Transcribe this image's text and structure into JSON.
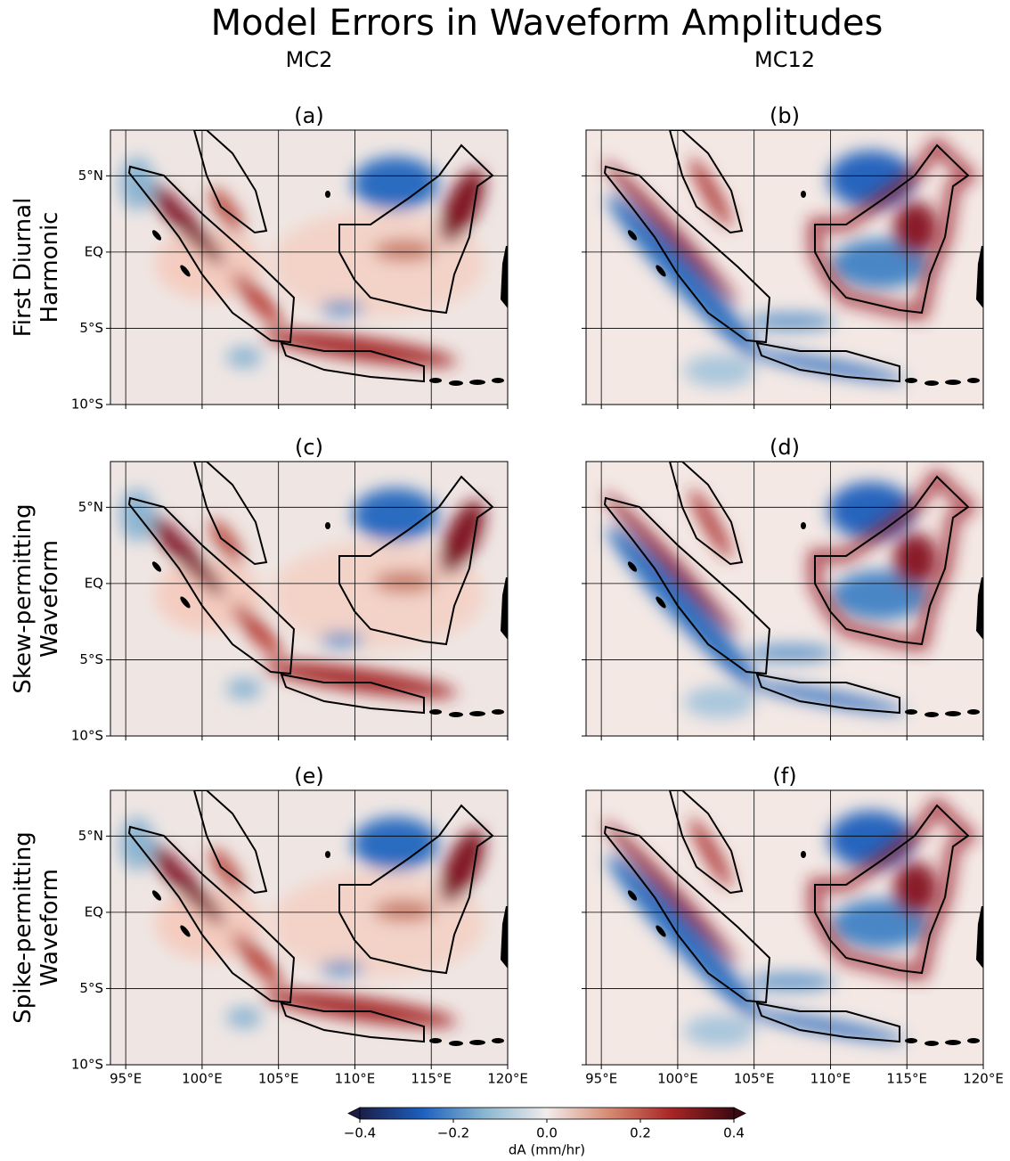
{
  "title": "Model Errors in Waveform Amplitudes",
  "columns": [
    "MC2",
    "MC12"
  ],
  "rows": [
    [
      "First Diurnal",
      "Harmonic"
    ],
    [
      "Skew-permitting",
      "Waveform"
    ],
    [
      "Spike-permitting",
      "Waveform"
    ]
  ],
  "panels": [
    "(a)",
    "(b)",
    "(c)",
    "(d)",
    "(e)",
    "(f)"
  ],
  "map": {
    "lonlim": [
      94,
      120
    ],
    "latlim": [
      -10,
      8
    ],
    "lon_ticks": [
      {
        "value": 95,
        "label": "95°E"
      },
      {
        "value": 100,
        "label": "100°E"
      },
      {
        "value": 105,
        "label": "105°E"
      },
      {
        "value": 110,
        "label": "110°E"
      },
      {
        "value": 115,
        "label": "115°E"
      },
      {
        "value": 120,
        "label": "120°E"
      }
    ],
    "lat_ticks": [
      {
        "value": 5,
        "label": "5°N"
      },
      {
        "value": 0,
        "label": "EQ"
      },
      {
        "value": -5,
        "label": "5°S"
      },
      {
        "value": -10,
        "label": "10°S"
      }
    ],
    "grid": true
  },
  "colorbar": {
    "label": "dA (mm/hr)",
    "lim": [
      -0.4,
      0.4
    ],
    "ticks": [
      {
        "value": -0.4,
        "label": "−0.4"
      },
      {
        "value": -0.2,
        "label": "−0.2"
      },
      {
        "value": 0,
        "label": "0.0"
      },
      0.2,
      0.4
    ],
    "colors": [
      "#1b1d47",
      "#1c5fbf",
      "#8ab6d0",
      "#f1eceb",
      "#d78a72",
      "#a82525",
      "#3c0912"
    ]
  }
}
